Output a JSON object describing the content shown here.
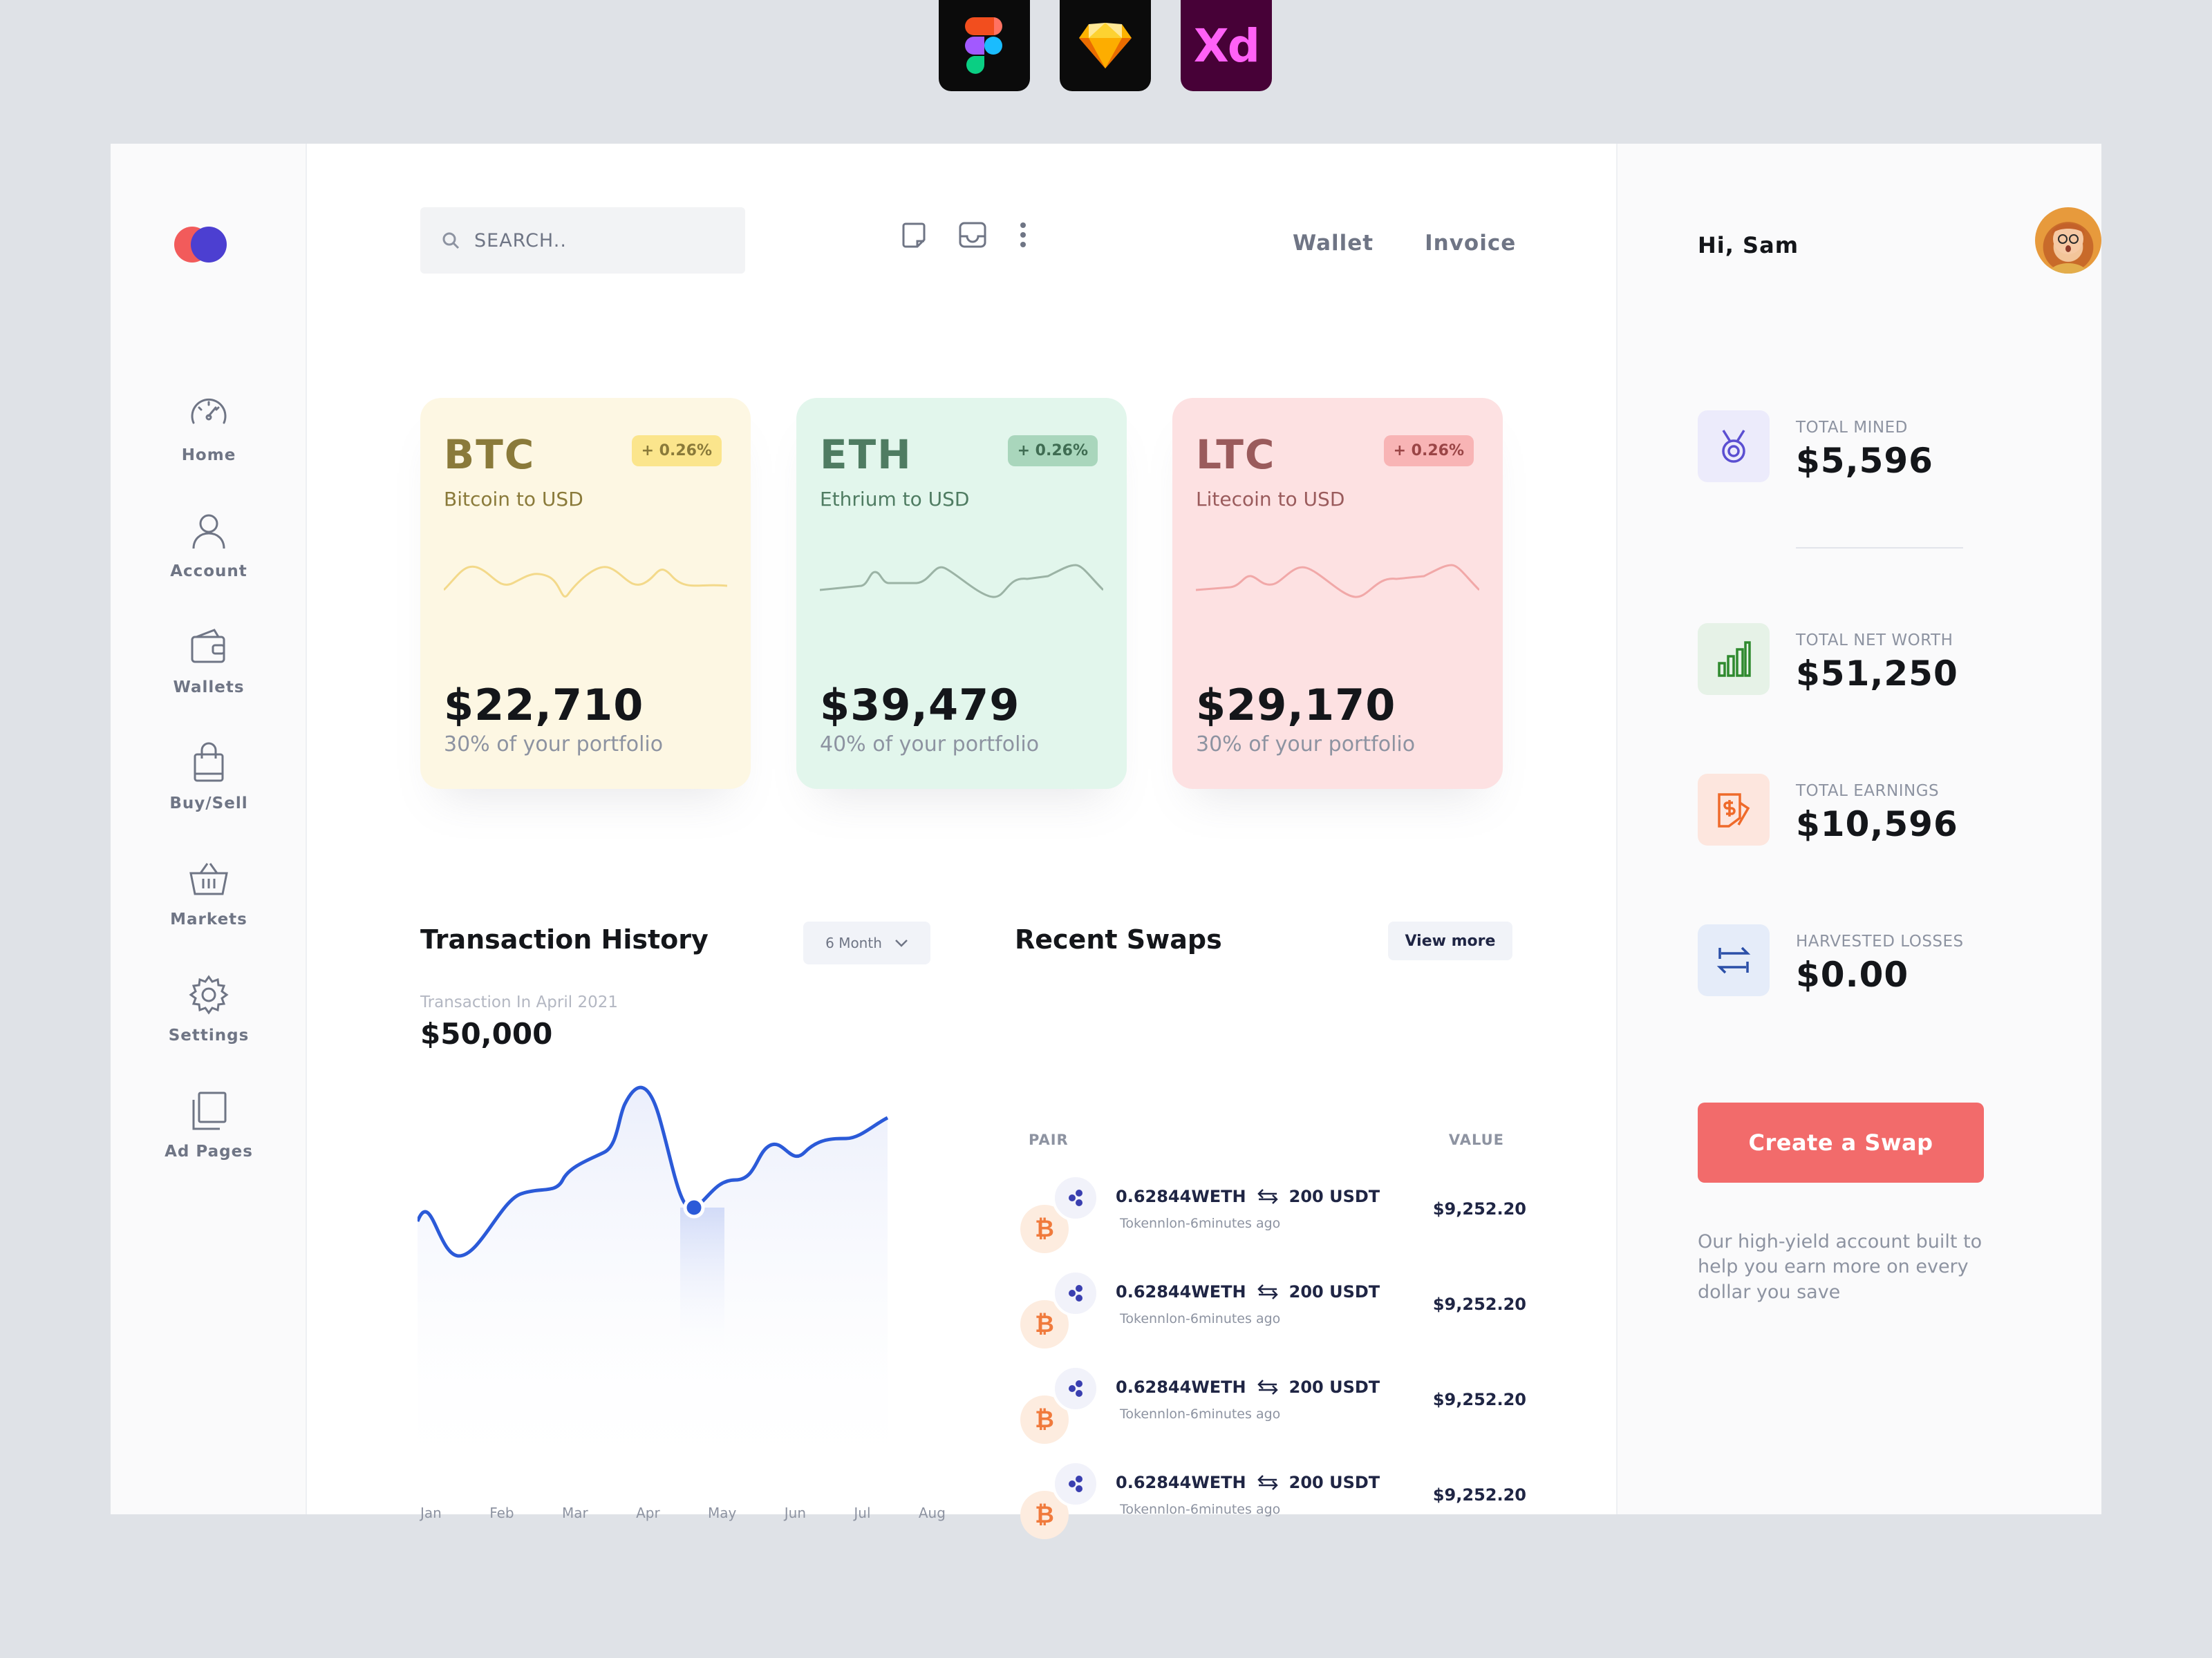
{
  "tools": [
    "figma-icon",
    "sketch-icon",
    "xd-icon"
  ],
  "xd_label": "Xd",
  "sidebar": {
    "items": [
      {
        "label": "Home",
        "icon": "speedometer-icon"
      },
      {
        "label": "Account",
        "icon": "user-icon"
      },
      {
        "label": "Wallets",
        "icon": "wallet-icon"
      },
      {
        "label": "Buy/Sell",
        "icon": "shopping-bag-icon"
      },
      {
        "label": "Markets",
        "icon": "basket-icon"
      },
      {
        "label": "Settings",
        "icon": "gear-icon"
      },
      {
        "label": "Ad Pages",
        "icon": "pages-icon"
      }
    ]
  },
  "header": {
    "search_placeholder": "SEARCH..",
    "links": [
      "Wallet",
      "Invoice"
    ]
  },
  "cards": [
    {
      "symbol": "BTC",
      "name": "Bitcoin to USD",
      "badge": "+ 0.26%",
      "price": "$22,710",
      "portfolio": "30% of your portfolio",
      "color": "#fdf7e3",
      "accent": "#8a7a3a"
    },
    {
      "symbol": "ETH",
      "name": "Ethrium to USD",
      "badge": "+ 0.26%",
      "price": "$39,479",
      "portfolio": "40% of your portfolio",
      "color": "#e2f6ec",
      "accent": "#4f7c62"
    },
    {
      "symbol": "LTC",
      "name": "Litecoin to USD",
      "badge": "+ 0.26%",
      "price": "$29,170",
      "portfolio": "30% of your portfolio",
      "color": "#fde1e2",
      "accent": "#9a5b5c"
    }
  ],
  "transaction_history": {
    "title": "Transaction History",
    "period": "6 Month",
    "subtitle": "Transaction In April 2021",
    "value": "$50,000",
    "months": [
      "Jan",
      "Feb",
      "Mar",
      "Apr",
      "May",
      "Jun",
      "Jul",
      "Aug"
    ]
  },
  "swaps": {
    "title": "Recent Swaps",
    "view_more": "View more",
    "col_pair": "PAIR",
    "col_value": "VALUE",
    "rows": [
      {
        "amount": "0.62844WETH",
        "to": "200 USDT",
        "time": "Tokennlon-6minutes ago",
        "value": "$9,252.20"
      },
      {
        "amount": "0.62844WETH",
        "to": "200 USDT",
        "time": "Tokennlon-6minutes ago",
        "value": "$9,252.20"
      },
      {
        "amount": "0.62844WETH",
        "to": "200 USDT",
        "time": "Tokennlon-6minutes ago",
        "value": "$9,252.20"
      },
      {
        "amount": "0.62844WETH",
        "to": "200 USDT",
        "time": "Tokennlon-6minutes ago",
        "value": "$9,252.20"
      }
    ]
  },
  "right": {
    "greeting": "Hi, Sam",
    "stats": [
      {
        "label": "TOTAL MINED",
        "value": "$5,596",
        "icon": "medal-icon"
      },
      {
        "label": "TOTAL NET WORTH",
        "value": "$51,250",
        "icon": "bar-chart-icon"
      },
      {
        "label": "TOTAL EARNINGS",
        "value": "$10,596",
        "icon": "money-icon"
      },
      {
        "label": "HARVESTED LOSSES",
        "value": "$0.00",
        "icon": "exchange-icon"
      }
    ],
    "cta": "Create a Swap",
    "note": "Our high-yield account built to help you earn more on every dollar you save"
  },
  "colors": {
    "accent_blue": "#2b5ad8",
    "cta_red": "#f26b6b"
  }
}
